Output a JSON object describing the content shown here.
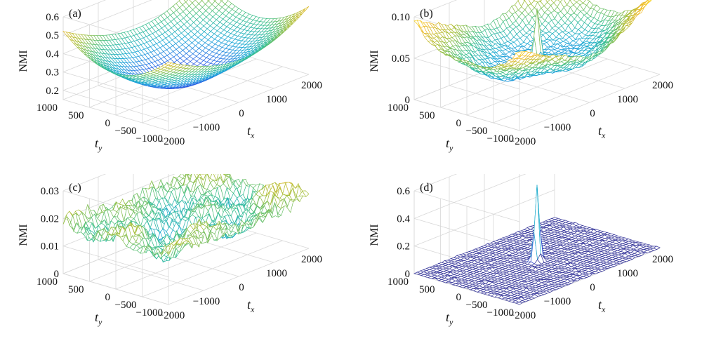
{
  "chart_data": [
    {
      "type": "surface",
      "panel_label": "(a)",
      "zlabel": "NMI",
      "xlabel": "t",
      "xlabel_sub": "x",
      "ylabel": "t",
      "ylabel_sub": "y",
      "x_range": [
        -2000,
        2000
      ],
      "y_range": [
        -1000,
        1000
      ],
      "zlim": [
        0.15,
        0.6
      ],
      "x_ticks": [
        -2000,
        -1000,
        0,
        1000,
        2000
      ],
      "x_tick_labels": [
        "−2000",
        "−1000",
        "0",
        "1000",
        "2000"
      ],
      "y_ticks": [
        -1000,
        -500,
        0,
        500,
        1000
      ],
      "y_tick_labels": [
        "−1000",
        "−500",
        "0",
        "500",
        "1000"
      ],
      "z_ticks": [
        0.2,
        0.3,
        0.4,
        0.5,
        0.6
      ],
      "z_tick_labels": [
        "0.2",
        "0.3",
        "0.4",
        "0.5",
        "0.6"
      ],
      "surface": {
        "shape": "bowl",
        "center_value": 0.17,
        "corner_value": 0.52,
        "peak_value": null
      },
      "grid": true
    },
    {
      "type": "surface",
      "panel_label": "(b)",
      "zlabel": "NMI",
      "xlabel": "t",
      "xlabel_sub": "x",
      "ylabel": "t",
      "ylabel_sub": "y",
      "x_range": [
        -2000,
        2000
      ],
      "y_range": [
        -1000,
        1000
      ],
      "zlim": [
        0,
        0.1
      ],
      "x_ticks": [
        -2000,
        -1000,
        0,
        1000,
        2000
      ],
      "x_tick_labels": [
        "−2000",
        "−1000",
        "0",
        "1000",
        "2000"
      ],
      "y_ticks": [
        -1000,
        -500,
        0,
        500,
        1000
      ],
      "y_tick_labels": [
        "−1000",
        "−500",
        "0",
        "500",
        "1000"
      ],
      "z_ticks": [
        0,
        0.05,
        0.1
      ],
      "z_tick_labels": [
        "0",
        "0.05",
        "0.10"
      ],
      "surface": {
        "shape": "bowl-peak",
        "center_value": 0.025,
        "corner_value": 0.1,
        "peak_value": 0.09
      },
      "grid": true
    },
    {
      "type": "surface",
      "panel_label": "(c)",
      "zlabel": "NMI",
      "xlabel": "t",
      "xlabel_sub": "x",
      "ylabel": "t",
      "ylabel_sub": "y",
      "x_range": [
        -2000,
        2000
      ],
      "y_range": [
        -1000,
        1000
      ],
      "zlim": [
        0,
        0.03
      ],
      "x_ticks": [
        -2000,
        -1000,
        0,
        1000,
        2000
      ],
      "x_tick_labels": [
        "−2000",
        "−1000",
        "0",
        "1000",
        "2000"
      ],
      "y_ticks": [
        -1000,
        -500,
        0,
        500,
        1000
      ],
      "y_tick_labels": [
        "−1000",
        "−500",
        "0",
        "500",
        "1000"
      ],
      "z_ticks": [
        0,
        0.01,
        0.02,
        0.03
      ],
      "z_tick_labels": [
        "0",
        "0.01",
        "0.02",
        "0.03"
      ],
      "surface": {
        "shape": "noisy",
        "center_value": 0.012,
        "corner_value": 0.022,
        "peak_value": null
      },
      "grid": true
    },
    {
      "type": "surface",
      "panel_label": "(d)",
      "zlabel": "NMI",
      "xlabel": "t",
      "xlabel_sub": "x",
      "ylabel": "t",
      "ylabel_sub": "y",
      "x_range": [
        -2000,
        2000
      ],
      "y_range": [
        -1000,
        1000
      ],
      "zlim": [
        0,
        0.6
      ],
      "x_ticks": [
        -2000,
        -1000,
        0,
        1000,
        2000
      ],
      "x_tick_labels": [
        "−2000",
        "−1000",
        "0",
        "1000",
        "2000"
      ],
      "y_ticks": [
        -1000,
        -500,
        0,
        500,
        1000
      ],
      "y_tick_labels": [
        "−1000",
        "−500",
        "0",
        "500",
        "1000"
      ],
      "z_ticks": [
        0,
        0.2,
        0.4,
        0.6
      ],
      "z_tick_labels": [
        "0",
        "0.2",
        "0.4",
        "0.6"
      ],
      "surface": {
        "shape": "flat-peak",
        "center_value": 0.01,
        "corner_value": 0.01,
        "peak_value": 0.55
      },
      "grid": true
    }
  ],
  "colors": {
    "colormap": [
      "#3d26a8",
      "#2e64e8",
      "#1aa9d6",
      "#3cc08f",
      "#a6bf3a",
      "#f0b92a",
      "#f9e41e"
    ],
    "flat_surface": "#3a3a9c",
    "grid": "#d8d8d8",
    "axis": "#444444"
  }
}
